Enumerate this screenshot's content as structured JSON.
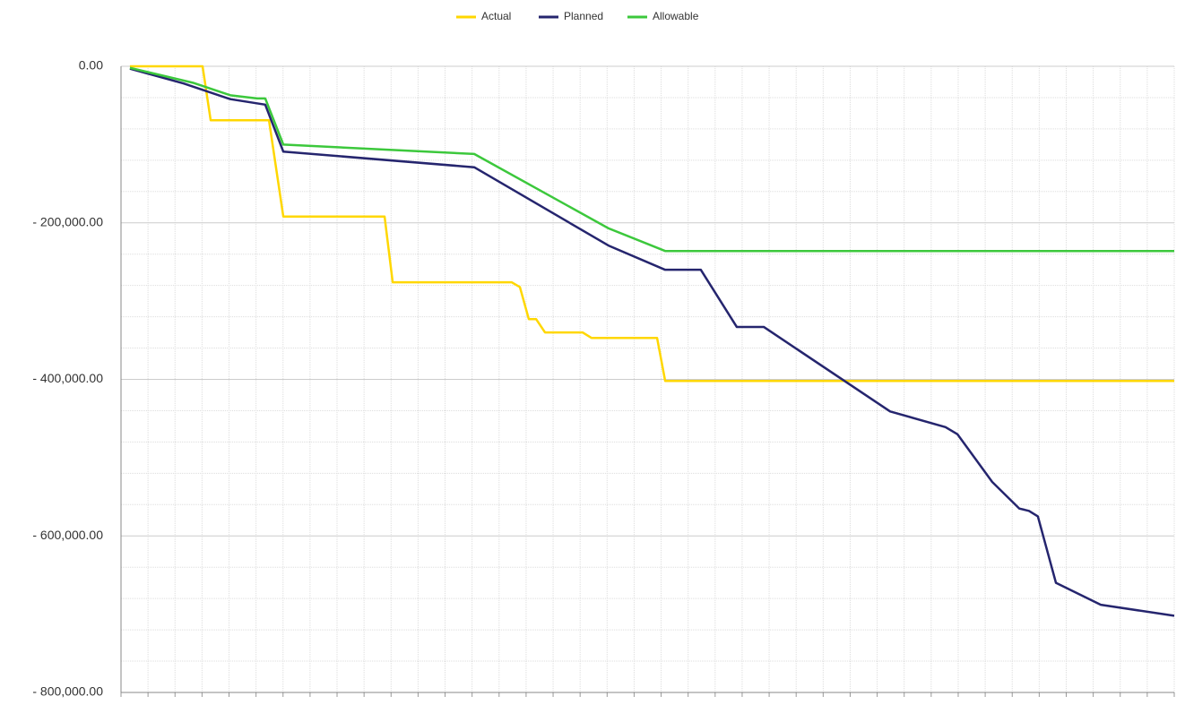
{
  "chart_data": {
    "type": "line",
    "legend": "top",
    "grid": true,
    "xlim": [
      0,
      39
    ],
    "xticks": [
      0,
      1,
      2,
      3,
      4,
      5,
      6,
      7,
      8,
      9,
      10,
      11,
      12,
      13,
      14,
      15,
      16,
      17,
      18,
      19,
      20,
      21,
      22,
      23,
      24,
      25,
      26,
      27,
      28,
      29,
      30,
      31,
      32,
      33,
      34,
      35,
      36,
      37,
      38,
      39
    ],
    "ylim": [
      -800000,
      0
    ],
    "yticks": [
      {
        "value": 0,
        "label": "0.00"
      },
      {
        "value": -200000,
        "label": "- 200,000.00"
      },
      {
        "value": -400000,
        "label": "- 400,000.00"
      },
      {
        "value": -600000,
        "label": "- 600,000.00"
      },
      {
        "value": -800000,
        "label": "- 800,000.00"
      }
    ],
    "series": [
      {
        "name": "Actual",
        "color": "#ffd700",
        "x": [
          0.33,
          3.02,
          3.32,
          5.48,
          6.01,
          9.76,
          10.06,
          14.47,
          14.77,
          15.1,
          15.37,
          15.7,
          17.09,
          17.42,
          19.85,
          20.15,
          39
        ],
        "values": [
          0,
          0,
          -69000,
          -69000,
          -192000,
          -192000,
          -276000,
          -276000,
          -282000,
          -323000,
          -323000,
          -340000,
          -340000,
          -347000,
          -347000,
          -402000,
          -402000
        ]
      },
      {
        "name": "Planned",
        "color": "#25256e",
        "x": [
          0.33,
          2.32,
          4.05,
          5.34,
          6.01,
          13.08,
          18.05,
          20.15,
          21.47,
          22.8,
          23.8,
          28.48,
          30.53,
          30.97,
          32.26,
          33.26,
          33.62,
          33.95,
          34.62,
          36.28,
          39
        ],
        "values": [
          -3000,
          -22000,
          -42000,
          -49000,
          -109000,
          -129000,
          -229000,
          -260000,
          -260000,
          -333000,
          -333000,
          -441000,
          -461000,
          -470000,
          -531000,
          -565000,
          -568000,
          -575000,
          -660000,
          -688000,
          -702000
        ]
      },
      {
        "name": "Allowable",
        "color": "#3cc83c",
        "x": [
          0.33,
          2.66,
          4.05,
          5.04,
          5.34,
          6.01,
          13.08,
          18.05,
          20.15,
          39
        ],
        "values": [
          -2000,
          -21000,
          -37000,
          -41000,
          -41000,
          -100000,
          -112000,
          -207000,
          -236000,
          -236000
        ]
      }
    ]
  }
}
